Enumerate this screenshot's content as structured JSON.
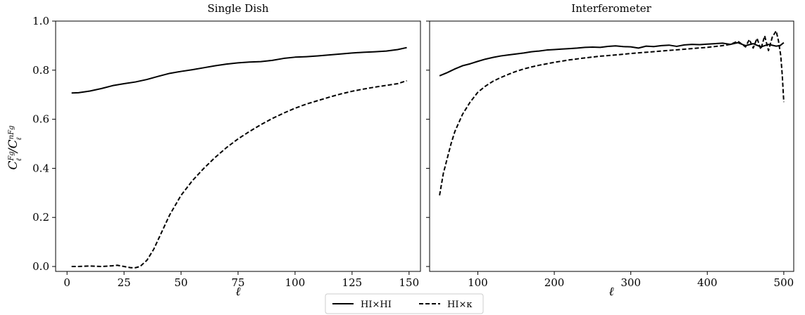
{
  "chart_data": [
    {
      "type": "line",
      "title": "Single Dish",
      "xlabel": "ℓ",
      "ylabel": "C_ℓ^Fg / C_ℓ^nFg",
      "xlim": [
        -5,
        155
      ],
      "ylim": [
        -0.02,
        1.0
      ],
      "xticks": [
        0,
        25,
        50,
        75,
        100,
        125,
        150
      ],
      "yticks": [
        0.0,
        0.2,
        0.4,
        0.6,
        0.8,
        1.0
      ],
      "series": [
        {
          "name": "HI×HI",
          "style": "solid",
          "x": [
            2,
            5,
            10,
            15,
            20,
            25,
            30,
            35,
            40,
            45,
            50,
            55,
            60,
            65,
            70,
            75,
            80,
            85,
            90,
            95,
            100,
            105,
            110,
            115,
            120,
            125,
            130,
            135,
            140,
            145,
            149
          ],
          "y": [
            0.707,
            0.708,
            0.715,
            0.725,
            0.737,
            0.745,
            0.752,
            0.762,
            0.775,
            0.787,
            0.795,
            0.802,
            0.81,
            0.818,
            0.825,
            0.83,
            0.833,
            0.835,
            0.84,
            0.848,
            0.853,
            0.855,
            0.858,
            0.862,
            0.866,
            0.87,
            0.873,
            0.875,
            0.878,
            0.884,
            0.892
          ]
        },
        {
          "name": "HI×κ",
          "style": "dashed",
          "x": [
            2,
            5,
            10,
            15,
            20,
            22,
            25,
            28,
            30,
            32,
            35,
            38,
            40,
            45,
            50,
            55,
            60,
            65,
            70,
            75,
            80,
            85,
            90,
            95,
            100,
            105,
            110,
            115,
            120,
            125,
            130,
            135,
            140,
            145,
            149
          ],
          "y": [
            0.0,
            0.0,
            0.002,
            0.0,
            0.003,
            0.005,
            0.0,
            -0.005,
            -0.005,
            0.0,
            0.025,
            0.07,
            0.11,
            0.21,
            0.29,
            0.35,
            0.4,
            0.445,
            0.485,
            0.52,
            0.55,
            0.578,
            0.603,
            0.625,
            0.645,
            0.662,
            0.676,
            0.69,
            0.703,
            0.714,
            0.723,
            0.731,
            0.738,
            0.745,
            0.757
          ]
        }
      ]
    },
    {
      "type": "line",
      "title": "Interferometer",
      "xlabel": "ℓ",
      "xlim": [
        37,
        513
      ],
      "ylim": [
        -0.02,
        1.0
      ],
      "xticks": [
        100,
        200,
        300,
        400,
        500
      ],
      "yticks": [
        0.0,
        0.2,
        0.4,
        0.6,
        0.8,
        1.0
      ],
      "series": [
        {
          "name": "HI×HI",
          "style": "solid",
          "x": [
            50,
            60,
            70,
            80,
            90,
            100,
            110,
            120,
            130,
            140,
            150,
            160,
            170,
            180,
            190,
            200,
            210,
            220,
            230,
            240,
            250,
            260,
            270,
            280,
            290,
            300,
            310,
            320,
            330,
            340,
            350,
            360,
            370,
            380,
            390,
            400,
            410,
            420,
            430,
            440,
            450,
            460,
            470,
            480,
            490,
            495,
            500
          ],
          "y": [
            0.777,
            0.79,
            0.805,
            0.818,
            0.826,
            0.836,
            0.845,
            0.852,
            0.858,
            0.862,
            0.866,
            0.87,
            0.875,
            0.878,
            0.882,
            0.884,
            0.886,
            0.888,
            0.89,
            0.893,
            0.894,
            0.893,
            0.897,
            0.899,
            0.896,
            0.895,
            0.89,
            0.898,
            0.896,
            0.9,
            0.902,
            0.897,
            0.903,
            0.905,
            0.904,
            0.906,
            0.908,
            0.91,
            0.905,
            0.912,
            0.9,
            0.908,
            0.895,
            0.905,
            0.898,
            0.9,
            0.912
          ]
        },
        {
          "name": "HI×κ",
          "style": "dashed",
          "x": [
            50,
            55,
            60,
            65,
            70,
            80,
            90,
            100,
            110,
            120,
            130,
            140,
            150,
            160,
            170,
            180,
            190,
            200,
            220,
            240,
            260,
            280,
            300,
            320,
            340,
            360,
            380,
            400,
            420,
            430,
            440,
            450,
            455,
            460,
            465,
            470,
            475,
            480,
            485,
            490,
            493,
            496,
            498,
            500
          ],
          "y": [
            0.29,
            0.38,
            0.44,
            0.5,
            0.55,
            0.62,
            0.67,
            0.71,
            0.735,
            0.755,
            0.77,
            0.783,
            0.795,
            0.805,
            0.813,
            0.82,
            0.826,
            0.832,
            0.842,
            0.85,
            0.857,
            0.862,
            0.868,
            0.873,
            0.878,
            0.883,
            0.888,
            0.893,
            0.9,
            0.905,
            0.918,
            0.895,
            0.925,
            0.89,
            0.93,
            0.885,
            0.94,
            0.88,
            0.935,
            0.96,
            0.92,
            0.86,
            0.78,
            0.67
          ]
        }
      ]
    }
  ],
  "legend": {
    "placement": "bottom-center",
    "entries": [
      {
        "label": "HI×HI",
        "style": "solid"
      },
      {
        "label": "HI×κ",
        "style": "dashed"
      }
    ]
  }
}
